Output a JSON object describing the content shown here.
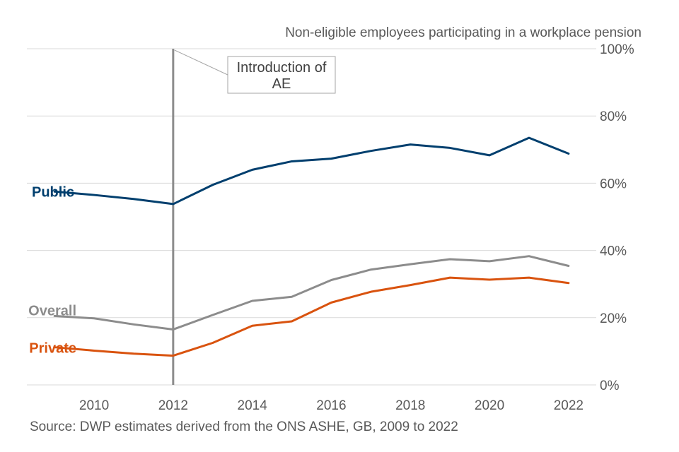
{
  "chart_data": {
    "type": "line",
    "title": "Non-eligible employees participating in a workplace pension",
    "source": "Source: DWP estimates derived from the ONS ASHE, GB, 2009 to 2022",
    "x": [
      2009,
      2010,
      2011,
      2012,
      2013,
      2014,
      2015,
      2016,
      2017,
      2018,
      2019,
      2020,
      2021,
      2022
    ],
    "xlim": [
      2008.3,
      2022.7
    ],
    "x_ticks": [
      "2010",
      "2012",
      "2014",
      "2016",
      "2018",
      "2020",
      "2022"
    ],
    "ylim": [
      0,
      100
    ],
    "y_ticks": [
      "0%",
      "20%",
      "40%",
      "60%",
      "80%",
      "100%"
    ],
    "y_axis_side": "right",
    "grid": true,
    "series": [
      {
        "name": "Public",
        "color": "#003f6e",
        "values": [
          57.5,
          56.5,
          55.3,
          53.8,
          59.5,
          64,
          66.5,
          67.3,
          69.6,
          71.5,
          70.5,
          68.3,
          73.5,
          68.8
        ]
      },
      {
        "name": "Overall",
        "color": "#8c8c8c",
        "values": [
          20.5,
          19.8,
          18,
          16.5,
          20.8,
          25,
          26.2,
          31.2,
          34.3,
          35.9,
          37.4,
          36.8,
          38.3,
          35.4
        ]
      },
      {
        "name": "Private",
        "color": "#d9530f",
        "values": [
          11.2,
          10.2,
          9.3,
          8.7,
          12.5,
          17.6,
          18.9,
          24.5,
          27.7,
          29.7,
          31.9,
          31.3,
          31.9,
          30.3
        ]
      }
    ],
    "annotation": {
      "lines": [
        "Introduction of",
        "AE"
      ],
      "x": 2012,
      "line_color": "#8c8c8c"
    }
  }
}
